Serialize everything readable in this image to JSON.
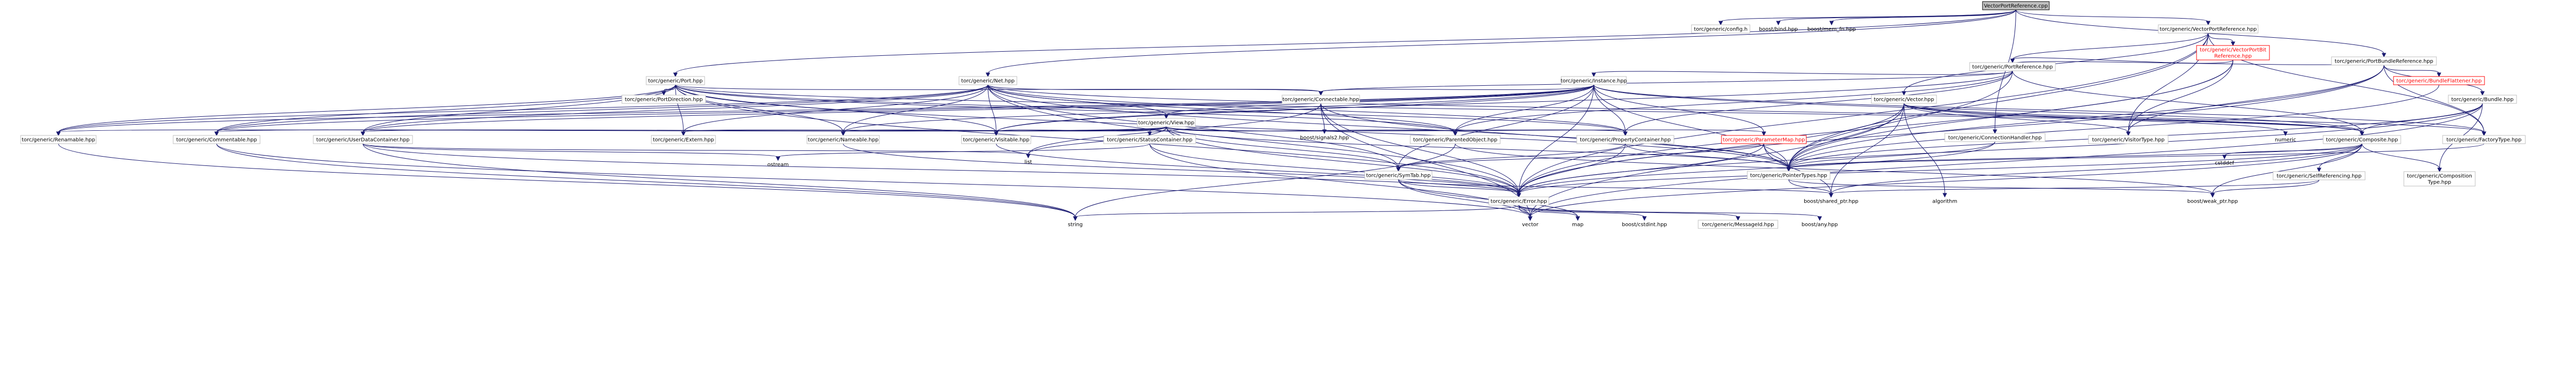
{
  "graph": {
    "colors": {
      "edge": "#191970",
      "root_fill": "#bfbfbf",
      "box_stroke": "#bfbfbf",
      "red": "#ff0000"
    },
    "nodes": [
      {
        "id": "root",
        "label": "VectorPortReference.cpp",
        "style": "root"
      },
      {
        "id": "config",
        "label": "torc/generic/config.h",
        "style": "box"
      },
      {
        "id": "bind",
        "label": "boost/bind.hpp",
        "style": "plain"
      },
      {
        "id": "memfn",
        "label": "boost/mem_fn.hpp",
        "style": "plain"
      },
      {
        "id": "vpr",
        "label": "torc/generic/VectorPortReference.hpp",
        "style": "box"
      },
      {
        "id": "vpbr",
        "label": "torc/generic/VectorPortBit\nReference.hpp",
        "style": "red"
      },
      {
        "id": "pbr",
        "label": "torc/generic/PortBundleReference.hpp",
        "style": "box"
      },
      {
        "id": "pref",
        "label": "torc/generic/PortReference.hpp",
        "style": "box"
      },
      {
        "id": "bflat",
        "label": "torc/generic/BundleFlattener.hpp",
        "style": "red"
      },
      {
        "id": "port",
        "label": "torc/generic/Port.hpp",
        "style": "box"
      },
      {
        "id": "net",
        "label": "torc/generic/Net.hpp",
        "style": "box"
      },
      {
        "id": "inst",
        "label": "torc/generic/Instance.hpp",
        "style": "box"
      },
      {
        "id": "bundle",
        "label": "torc/generic/Bundle.hpp",
        "style": "box"
      },
      {
        "id": "pdir",
        "label": "torc/generic/PortDirection.hpp",
        "style": "box"
      },
      {
        "id": "conn",
        "label": "torc/generic/Connectable.hpp",
        "style": "box"
      },
      {
        "id": "vec",
        "label": "torc/generic/Vector.hpp",
        "style": "box"
      },
      {
        "id": "view",
        "label": "torc/generic/View.hpp",
        "style": "box"
      },
      {
        "id": "renam",
        "label": "torc/generic/Renamable.hpp",
        "style": "box"
      },
      {
        "id": "comm",
        "label": "torc/generic/Commentable.hpp",
        "style": "box"
      },
      {
        "id": "udc",
        "label": "torc/generic/UserDataContainer.hpp",
        "style": "box"
      },
      {
        "id": "extern",
        "label": "torc/generic/Extern.hpp",
        "style": "box"
      },
      {
        "id": "nameable",
        "label": "torc/generic/Nameable.hpp",
        "style": "box"
      },
      {
        "id": "visit",
        "label": "torc/generic/Visitable.hpp",
        "style": "box"
      },
      {
        "id": "statc",
        "label": "torc/generic/StatusContainer.hpp",
        "style": "box"
      },
      {
        "id": "parobj",
        "label": "torc/generic/ParentedObject.hpp",
        "style": "box"
      },
      {
        "id": "propc",
        "label": "torc/generic/PropertyContainer.hpp",
        "style": "box"
      },
      {
        "id": "parmap",
        "label": "torc/generic/ParameterMap.hpp",
        "style": "red"
      },
      {
        "id": "signals",
        "label": "boost/signals2.hpp",
        "style": "plain"
      },
      {
        "id": "connh",
        "label": "torc/generic/ConnectionHandler.hpp",
        "style": "box"
      },
      {
        "id": "vtype",
        "label": "torc/generic/VisitorType.hpp",
        "style": "box"
      },
      {
        "id": "numeric",
        "label": "numeric",
        "style": "plain"
      },
      {
        "id": "compo",
        "label": "torc/generic/Composite.hpp",
        "style": "box"
      },
      {
        "id": "ftype",
        "label": "torc/generic/FactoryType.hpp",
        "style": "box"
      },
      {
        "id": "cstddef",
        "label": "cstddef",
        "style": "plain"
      },
      {
        "id": "selfref",
        "label": "torc/generic/SelfReferencing.hpp",
        "style": "box"
      },
      {
        "id": "comptype",
        "label": "torc/generic/Composition\nType.hpp",
        "style": "box"
      },
      {
        "id": "ostream",
        "label": "ostream",
        "style": "plain"
      },
      {
        "id": "list",
        "label": "list",
        "style": "plain"
      },
      {
        "id": "symtab",
        "label": "torc/generic/SymTab.hpp",
        "style": "box"
      },
      {
        "id": "ptypes",
        "label": "torc/generic/PointerTypes.hpp",
        "style": "box"
      },
      {
        "id": "error",
        "label": "torc/generic/Error.hpp",
        "style": "box"
      },
      {
        "id": "sharedptr",
        "label": "boost/shared_ptr.hpp",
        "style": "plain"
      },
      {
        "id": "algorithm",
        "label": "algorithm",
        "style": "plain"
      },
      {
        "id": "weakptr",
        "label": "boost/weak_ptr.hpp",
        "style": "plain"
      },
      {
        "id": "string",
        "label": "string",
        "style": "plain"
      },
      {
        "id": "vector",
        "label": "vector",
        "style": "plain"
      },
      {
        "id": "map",
        "label": "map",
        "style": "plain"
      },
      {
        "id": "cstdint",
        "label": "boost/cstdint.hpp",
        "style": "plain"
      },
      {
        "id": "msgid",
        "label": "torc/generic/MessageId.hpp",
        "style": "box"
      },
      {
        "id": "any",
        "label": "boost/any.hpp",
        "style": "plain"
      }
    ],
    "edges": [
      [
        "root",
        "config"
      ],
      [
        "root",
        "bind"
      ],
      [
        "root",
        "memfn"
      ],
      [
        "root",
        "vpr"
      ],
      [
        "root",
        "pbr"
      ],
      [
        "root",
        "port"
      ],
      [
        "root",
        "net"
      ],
      [
        "root",
        "connh"
      ],
      [
        "vpr",
        "vpbr"
      ],
      [
        "vpr",
        "pref"
      ],
      [
        "vpr",
        "vec"
      ],
      [
        "vpr",
        "vtype"
      ],
      [
        "vpr",
        "ftype"
      ],
      [
        "vpr",
        "ptypes"
      ],
      [
        "vpr",
        "error"
      ],
      [
        "vpbr",
        "pref"
      ],
      [
        "vpbr",
        "vtype"
      ],
      [
        "vpbr",
        "ptypes"
      ],
      [
        "vpbr",
        "error"
      ],
      [
        "pbr",
        "pref"
      ],
      [
        "pbr",
        "bflat"
      ],
      [
        "pbr",
        "bundle"
      ],
      [
        "pbr",
        "vtype"
      ],
      [
        "pbr",
        "ftype"
      ],
      [
        "pbr",
        "ptypes"
      ],
      [
        "pbr",
        "error"
      ],
      [
        "pref",
        "inst"
      ],
      [
        "pref",
        "conn"
      ],
      [
        "pref",
        "compo"
      ],
      [
        "pref",
        "visit"
      ],
      [
        "pref",
        "propc"
      ],
      [
        "pref",
        "ptypes"
      ],
      [
        "pref",
        "parobj"
      ],
      [
        "bflat",
        "ptypes"
      ],
      [
        "bundle",
        "compo"
      ],
      [
        "bundle",
        "comptype"
      ],
      [
        "bundle",
        "ptypes"
      ],
      [
        "bundle",
        "error"
      ],
      [
        "bundle",
        "vector"
      ],
      [
        "port",
        "pdir"
      ],
      [
        "port",
        "conn"
      ],
      [
        "port",
        "compo"
      ],
      [
        "port",
        "renam"
      ],
      [
        "port",
        "comm"
      ],
      [
        "port",
        "udc"
      ],
      [
        "port",
        "extern"
      ],
      [
        "port",
        "nameable"
      ],
      [
        "port",
        "visit"
      ],
      [
        "port",
        "parobj"
      ],
      [
        "port",
        "propc"
      ],
      [
        "port",
        "ptypes"
      ],
      [
        "port",
        "error"
      ],
      [
        "net",
        "conn"
      ],
      [
        "net",
        "compo"
      ],
      [
        "net",
        "view"
      ],
      [
        "net",
        "renam"
      ],
      [
        "net",
        "comm"
      ],
      [
        "net",
        "udc"
      ],
      [
        "net",
        "extern"
      ],
      [
        "net",
        "nameable"
      ],
      [
        "net",
        "visit"
      ],
      [
        "net",
        "parobj"
      ],
      [
        "net",
        "propc"
      ],
      [
        "net",
        "ptypes"
      ],
      [
        "net",
        "error"
      ],
      [
        "net",
        "symtab"
      ],
      [
        "inst",
        "conn"
      ],
      [
        "inst",
        "compo"
      ],
      [
        "inst",
        "view"
      ],
      [
        "inst",
        "parmap"
      ],
      [
        "inst",
        "renam"
      ],
      [
        "inst",
        "comm"
      ],
      [
        "inst",
        "udc"
      ],
      [
        "inst",
        "nameable"
      ],
      [
        "inst",
        "visit"
      ],
      [
        "inst",
        "parobj"
      ],
      [
        "inst",
        "propc"
      ],
      [
        "inst",
        "ptypes"
      ],
      [
        "inst",
        "error"
      ],
      [
        "inst",
        "symtab"
      ],
      [
        "inst",
        "ftype"
      ],
      [
        "conn",
        "signals"
      ],
      [
        "conn",
        "list"
      ],
      [
        "conn",
        "vector"
      ],
      [
        "conn",
        "ptypes"
      ],
      [
        "conn",
        "error"
      ],
      [
        "vec",
        "numeric"
      ],
      [
        "vec",
        "compo"
      ],
      [
        "vec",
        "ftype"
      ],
      [
        "vec",
        "vtype"
      ],
      [
        "vec",
        "ptypes"
      ],
      [
        "vec",
        "error"
      ],
      [
        "vec",
        "vector"
      ],
      [
        "vec",
        "algorithm"
      ],
      [
        "vec",
        "sharedptr"
      ],
      [
        "view",
        "extern"
      ],
      [
        "view",
        "renam"
      ],
      [
        "view",
        "comm"
      ],
      [
        "view",
        "udc"
      ],
      [
        "view",
        "nameable"
      ],
      [
        "view",
        "visit"
      ],
      [
        "view",
        "statc"
      ],
      [
        "view",
        "parobj"
      ],
      [
        "view",
        "propc"
      ],
      [
        "view",
        "parmap"
      ],
      [
        "view",
        "symtab"
      ],
      [
        "view",
        "ptypes"
      ],
      [
        "view",
        "error"
      ],
      [
        "view",
        "list"
      ],
      [
        "renam",
        "string"
      ],
      [
        "comm",
        "string"
      ],
      [
        "comm",
        "vector"
      ],
      [
        "udc",
        "ostream"
      ],
      [
        "udc",
        "string"
      ],
      [
        "udc",
        "list"
      ],
      [
        "udc",
        "error"
      ],
      [
        "nameable",
        "error"
      ],
      [
        "visit",
        "error"
      ],
      [
        "statc",
        "ostream"
      ],
      [
        "statc",
        "vector"
      ],
      [
        "statc",
        "error"
      ],
      [
        "parobj",
        "weakptr"
      ],
      [
        "parobj",
        "string"
      ],
      [
        "propc",
        "symtab"
      ],
      [
        "propc",
        "ptypes"
      ],
      [
        "propc",
        "error"
      ],
      [
        "parmap",
        "symtab"
      ],
      [
        "parmap",
        "ptypes"
      ],
      [
        "parmap",
        "error"
      ],
      [
        "parmap",
        "sharedptr"
      ],
      [
        "connh",
        "ptypes"
      ],
      [
        "connh",
        "error"
      ],
      [
        "compo",
        "cstddef"
      ],
      [
        "compo",
        "selfref"
      ],
      [
        "compo",
        "comptype"
      ],
      [
        "compo",
        "ptypes"
      ],
      [
        "compo",
        "error"
      ],
      [
        "compo",
        "vector"
      ],
      [
        "compo",
        "sharedptr"
      ],
      [
        "compo",
        "weakptr"
      ],
      [
        "ftype",
        "ptypes"
      ],
      [
        "selfref",
        "weakptr"
      ],
      [
        "selfref",
        "sharedptr"
      ],
      [
        "symtab",
        "map"
      ],
      [
        "symtab",
        "vector"
      ],
      [
        "symtab",
        "error"
      ],
      [
        "symtab",
        "sharedptr"
      ],
      [
        "ptypes",
        "sharedptr"
      ],
      [
        "ptypes",
        "weakptr"
      ],
      [
        "error",
        "string"
      ],
      [
        "error",
        "vector"
      ],
      [
        "error",
        "cstdint"
      ],
      [
        "error",
        "msgid"
      ],
      [
        "error",
        "any"
      ],
      [
        "error",
        "map"
      ]
    ]
  }
}
